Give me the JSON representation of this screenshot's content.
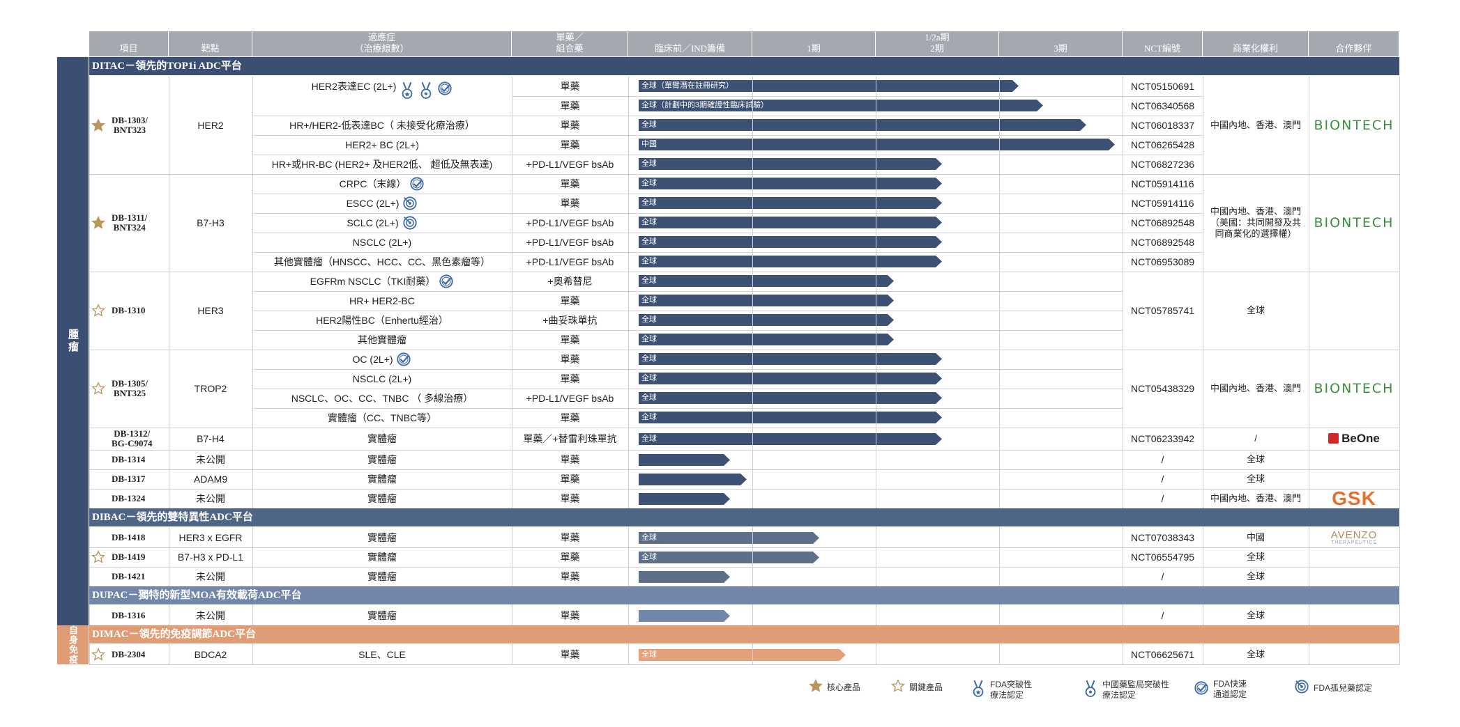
{
  "colors": {
    "ditac": "#3a4f72",
    "dibac": "#4f6585",
    "dupac": "#7186a8",
    "dimac": "#e09c74",
    "header": "#a4a8b0",
    "bar_ditac": "#3c5173",
    "bar_dibac": "#5e7088",
    "bar_dupac": "#7087a7",
    "bar_dimac": "#e3a07a"
  },
  "headers": [
    {
      "key": "item",
      "label": "項目"
    },
    {
      "key": "target",
      "label": "靶點"
    },
    {
      "key": "indication",
      "label": "適應症\n（治療線數）"
    },
    {
      "key": "mono",
      "label": "單藥／\n組合藥"
    },
    {
      "key": "preclin",
      "label": "臨床前／IND籌備"
    },
    {
      "key": "p1",
      "label": "1期"
    },
    {
      "key": "p12",
      "label": "1/2a期\n2期"
    },
    {
      "key": "p3",
      "label": "3期"
    },
    {
      "key": "nct",
      "label": "NCT編號"
    },
    {
      "key": "rights",
      "label": "商業化權利"
    },
    {
      "key": "partner",
      "label": "合作夥伴"
    }
  ],
  "side_labels": {
    "oncology": "腫瘤",
    "autoimmune": "自身免疫"
  },
  "sections": {
    "ditac": "DITAC－領先的TOP1i ADC平台",
    "dibac": "DIBAC－領先的雙特異性ADC平台",
    "dupac": "DUPAC－獨特的新型MOA有效載荷ADC平台",
    "dimac": "DIMAC－領先的免疫調節ADC平台"
  },
  "groups": [
    {
      "name": "DB-1303/\nBNT323",
      "star": "filled",
      "target": "HER2",
      "rights": "中國內地、香港、澳門",
      "partner": "BIONTECH",
      "rows": [
        {
          "ind": "HER2表達EC (2L+)",
          "icons": [
            "fda-breakthrough",
            "nmpa-breakthrough",
            "fda-fast-track"
          ],
          "mode": "單藥",
          "bar": "全球（單臂潛在註冊研究）",
          "pct": 0.79,
          "nct": "NCT05150691"
        },
        {
          "ind": "",
          "icons": [],
          "mode": "單藥",
          "bar": "全球（計劃中的3期確證性臨床試驗）",
          "pct": 0.84,
          "nct": "NCT06340568"
        },
        {
          "ind": "HR+/HER2-低表達BC（ 未接受化療治療）",
          "icons": [],
          "mode": "單藥",
          "bar": "全球",
          "pct": 0.93,
          "nct": "NCT06018337"
        },
        {
          "ind": "HER2+ BC (2L+)",
          "icons": [],
          "mode": "單藥",
          "bar": "中國",
          "pct": 0.99,
          "nct": "NCT06265428"
        },
        {
          "ind": "HR+或HR-BC (HER2+ 及HER2低、 超低及無表達)",
          "icons": [],
          "mode": "+PD-L1/VEGF bsAb",
          "bar": "全球",
          "pct": 0.63,
          "nct": "NCT06827236"
        }
      ]
    },
    {
      "name": "DB-1311/\nBNT324",
      "star": "filled",
      "target": "B7-H3",
      "rights": "中國內地、香港、澳門\n（美國：共同開發及共\n同商業化的選擇權）",
      "partner": "BIONTECH",
      "rows": [
        {
          "ind": "CRPC（末線）",
          "icons": [
            "fda-fast-track"
          ],
          "mode": "單藥",
          "bar": "全球",
          "pct": 0.63,
          "nct": "NCT05914116"
        },
        {
          "ind": "ESCC (2L+)",
          "icons": [
            "fda-orphan"
          ],
          "mode": "單藥",
          "bar": "全球",
          "pct": 0.63,
          "nct": "NCT05914116"
        },
        {
          "ind": "SCLC (2L+)",
          "icons": [
            "fda-orphan"
          ],
          "mode": "+PD-L1/VEGF bsAb",
          "bar": "全球",
          "pct": 0.63,
          "nct": "NCT06892548"
        },
        {
          "ind": "NSCLC (2L+)",
          "icons": [],
          "mode": "+PD-L1/VEGF bsAb",
          "bar": "全球",
          "pct": 0.63,
          "nct": "NCT06892548"
        },
        {
          "ind": "其他實體瘤（HNSCC、HCC、CC、黑色素瘤等）",
          "icons": [],
          "mode": "+PD-L1/VEGF bsAb",
          "bar": "全球",
          "pct": 0.63,
          "nct": "NCT06953089"
        }
      ]
    },
    {
      "name": "DB-1310",
      "star": "outline",
      "target": "HER3",
      "rights": "全球",
      "partner": "",
      "nct_merged": "NCT05785741",
      "rows": [
        {
          "ind": "EGFRm NSCLC（TKI耐藥）",
          "icons": [
            "fda-fast-track"
          ],
          "mode": "+奧希替尼",
          "bar": "全球",
          "pct": 0.53
        },
        {
          "ind": "HR+ HER2-BC",
          "icons": [],
          "mode": "單藥",
          "bar": "全球",
          "pct": 0.53
        },
        {
          "ind": "HER2陽性BC（Enhertu經治）",
          "icons": [],
          "mode": "+曲妥珠單抗",
          "bar": "全球",
          "pct": 0.53
        },
        {
          "ind": "其他實體瘤",
          "icons": [],
          "mode": "單藥",
          "bar": "全球",
          "pct": 0.53
        }
      ]
    },
    {
      "name": "DB-1305/\nBNT325",
      "star": "outline",
      "target": "TROP2",
      "rights": "中國內地、香港、澳門",
      "partner": "BIONTECH",
      "nct_merged": "NCT05438329",
      "rows": [
        {
          "ind": "OC (2L+)",
          "icons": [
            "fda-fast-track"
          ],
          "mode": "單藥",
          "bar": "全球",
          "pct": 0.63
        },
        {
          "ind": "NSCLC (2L+)",
          "icons": [],
          "mode": "單藥",
          "bar": "全球",
          "pct": 0.63
        },
        {
          "ind": "NSCLC、OC、CC、TNBC （ 多線治療）",
          "icons": [],
          "mode": "+PD-L1/VEGF bsAb",
          "bar": "全球",
          "pct": 0.63
        },
        {
          "ind": "實體瘤（CC、TNBC等）",
          "icons": [],
          "mode": "單藥",
          "bar": "全球",
          "pct": 0.63
        }
      ]
    }
  ],
  "singles": [
    {
      "name": "DB-1312/\nBG-C9074",
      "star": "",
      "target": "B7-H4",
      "ind": "實體瘤",
      "mode": "單藥／+替雷利珠單抗",
      "bar": "全球",
      "pct": 0.63,
      "nct": "NCT06233942",
      "rights": "/",
      "partner": "BeOne",
      "section": "ditac"
    },
    {
      "name": "DB-1314",
      "star": "",
      "target": "未公開",
      "ind": "實體瘤",
      "mode": "單藥",
      "bar": "",
      "pct": 0.19,
      "nct": "/",
      "rights": "全球",
      "partner": "",
      "section": "ditac"
    },
    {
      "name": "DB-1317",
      "star": "",
      "target": "ADAM9",
      "ind": "實體瘤",
      "mode": "單藥",
      "bar": "",
      "pct": 0.225,
      "nct": "/",
      "rights": "全球",
      "partner": "",
      "section": "ditac"
    },
    {
      "name": "DB-1324",
      "star": "",
      "target": "未公開",
      "ind": "實體瘤",
      "mode": "單藥",
      "bar": "",
      "pct": 0.19,
      "nct": "/",
      "rights": "中國內地、香港、澳門",
      "partner": "GSK",
      "section": "ditac"
    },
    {
      "name": "DB-1418",
      "star": "",
      "target": "HER3 x EGFR",
      "ind": "實體瘤",
      "mode": "單藥",
      "bar": "全球",
      "pct": 0.375,
      "nct": "NCT07038343",
      "rights": "中國",
      "partner": "AVENZO",
      "section": "dibac"
    },
    {
      "name": "DB-1419",
      "star": "outline",
      "target": "B7-H3 x PD-L1",
      "ind": "實體瘤",
      "mode": "單藥",
      "bar": "全球",
      "pct": 0.375,
      "nct": "NCT06554795",
      "rights": "全球",
      "partner": "",
      "section": "dibac"
    },
    {
      "name": "DB-1421",
      "star": "",
      "target": "未公開",
      "ind": "實體瘤",
      "mode": "單藥",
      "bar": "",
      "pct": 0.19,
      "nct": "/",
      "rights": "全球",
      "partner": "",
      "section": "dibac"
    },
    {
      "name": "DB-1316",
      "star": "",
      "target": "未公開",
      "ind": "實體瘤",
      "mode": "單藥",
      "bar": "",
      "pct": 0.19,
      "nct": "/",
      "rights": "全球",
      "partner": "",
      "section": "dupac"
    },
    {
      "name": "DB-2304",
      "star": "outline",
      "target": "BDCA2",
      "ind": "SLE、CLE",
      "mode": "單藥",
      "bar": "全球",
      "pct": 0.43,
      "nct": "NCT06625671",
      "rights": "全球",
      "partner": "",
      "section": "dimac"
    }
  ],
  "partners": {
    "biontech": "BIONTECH",
    "beone": "BeOne",
    "gsk": "GSK",
    "avenzo": "AVENZO",
    "avenzo_sub": "THERAPEUTICS"
  },
  "legend": [
    {
      "icon": "star-filled",
      "label": "核心產品"
    },
    {
      "icon": "star-outline",
      "label": "關鍵產品"
    },
    {
      "icon": "fda-breakthrough",
      "label": "FDA突破性\n療法認定"
    },
    {
      "icon": "nmpa-breakthrough",
      "label": "中國藥監局突破性\n療法認定"
    },
    {
      "icon": "fda-fast-track",
      "label": "FDA快速\n通道認定"
    },
    {
      "icon": "fda-orphan",
      "label": "FDA孤兒藥認定"
    }
  ]
}
